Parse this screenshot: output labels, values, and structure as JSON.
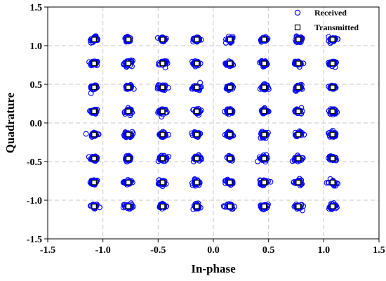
{
  "chart_data": {
    "type": "scatter",
    "title": "",
    "xlabel": "In-phase",
    "ylabel": "Quadrature",
    "xlim": [
      -1.5,
      1.5
    ],
    "ylim": [
      -1.5,
      1.5
    ],
    "xticks": [
      "-1.5",
      "-1.0",
      "-0.5",
      "0.0",
      "0.5",
      "1.0",
      "1.5"
    ],
    "yticks": [
      "1.5",
      "1.0",
      "0.5",
      "0.0",
      "-0.5",
      "-1.0",
      "-1.5"
    ],
    "grid": true,
    "legend_position": "top-right",
    "constellation_levels": [
      -1.08,
      -0.77,
      -0.46,
      -0.15,
      0.15,
      0.46,
      0.77,
      1.08
    ],
    "series": [
      {
        "name": "Received",
        "marker": "circle",
        "color": "#0000ff",
        "noise_std": 0.018,
        "samples_per_point": 30
      },
      {
        "name": "Transmitted",
        "marker": "square",
        "color": "#000000"
      }
    ]
  }
}
